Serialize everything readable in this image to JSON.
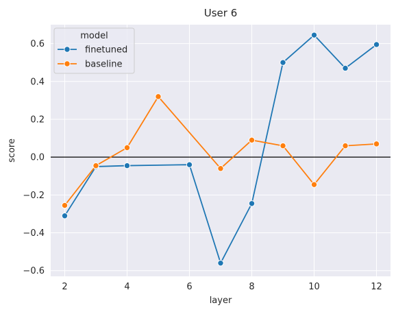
{
  "chart_data": {
    "type": "line",
    "title": "User 6",
    "xlabel": "layer",
    "ylabel": "score",
    "xlim": [
      1.55,
      12.45
    ],
    "ylim": [
      -0.63,
      0.7
    ],
    "xticks": [
      2,
      4,
      6,
      8,
      10,
      12
    ],
    "yticks": [
      -0.6,
      -0.4,
      -0.2,
      0.0,
      0.2,
      0.4,
      0.6
    ],
    "ytick_labels": [
      "−0.6",
      "−0.4",
      "−0.2",
      "0.0",
      "0.2",
      "0.4",
      "0.6"
    ],
    "grid": true,
    "reference_line": {
      "y": 0.0,
      "color": "#000000"
    },
    "legend": {
      "title": "model",
      "placement": "top-left"
    },
    "series": [
      {
        "name": "finetuned",
        "color": "#1f77b4",
        "x": [
          2,
          3,
          4,
          6,
          7,
          8,
          9,
          10,
          11,
          12
        ],
        "y": [
          -0.31,
          -0.05,
          -0.045,
          -0.04,
          -0.56,
          -0.245,
          0.5,
          0.645,
          0.47,
          0.595
        ]
      },
      {
        "name": "baseline",
        "color": "#ff7f0e",
        "x": [
          2,
          3,
          4,
          5,
          7,
          8,
          9,
          10,
          11,
          12
        ],
        "y": [
          -0.255,
          -0.045,
          0.05,
          0.32,
          -0.06,
          0.09,
          0.06,
          -0.145,
          0.06,
          0.07
        ]
      }
    ]
  }
}
